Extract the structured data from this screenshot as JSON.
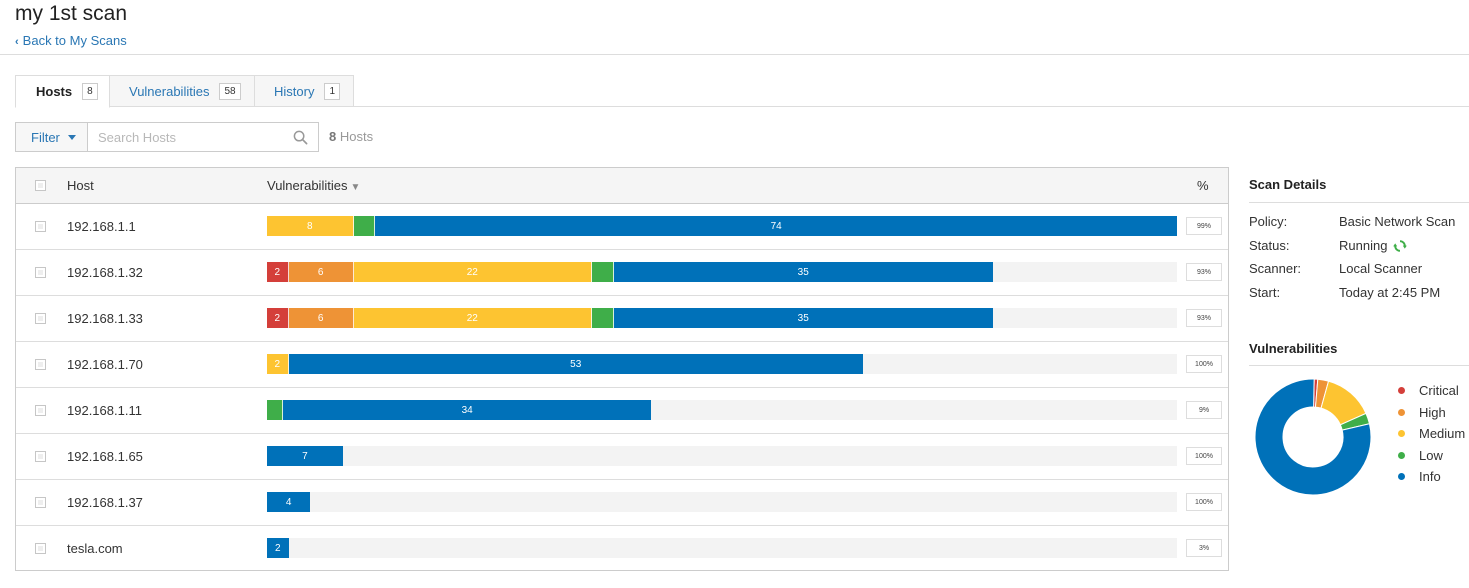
{
  "page": {
    "title": "my 1st scan",
    "back_link": "Back to My Scans"
  },
  "tabs": [
    {
      "label": "Hosts",
      "count": "8",
      "active": true
    },
    {
      "label": "Vulnerabilities",
      "count": "58",
      "active": false
    },
    {
      "label": "History",
      "count": "1",
      "active": false
    }
  ],
  "filter": {
    "button_label": "Filter",
    "search_placeholder": "Search Hosts",
    "count_number": "8",
    "count_label": "Hosts"
  },
  "table": {
    "headers": {
      "host": "Host",
      "vulnerabilities": "Vulnerabilities",
      "percent": "%"
    },
    "rows": [
      {
        "host": "192.168.1.1",
        "percent": "99%",
        "segments": [
          {
            "severity": "medium",
            "count": 8,
            "label": "8"
          },
          {
            "severity": "low",
            "count": 2,
            "label": ""
          },
          {
            "severity": "info",
            "count": 74,
            "label": "74"
          }
        ]
      },
      {
        "host": "192.168.1.32",
        "percent": "93%",
        "segments": [
          {
            "severity": "critical",
            "count": 2,
            "label": "2"
          },
          {
            "severity": "high",
            "count": 6,
            "label": "6"
          },
          {
            "severity": "medium",
            "count": 22,
            "label": "22"
          },
          {
            "severity": "low",
            "count": 2,
            "label": ""
          },
          {
            "severity": "info",
            "count": 35,
            "label": "35"
          }
        ]
      },
      {
        "host": "192.168.1.33",
        "percent": "93%",
        "segments": [
          {
            "severity": "critical",
            "count": 2,
            "label": "2"
          },
          {
            "severity": "high",
            "count": 6,
            "label": "6"
          },
          {
            "severity": "medium",
            "count": 22,
            "label": "22"
          },
          {
            "severity": "low",
            "count": 2,
            "label": ""
          },
          {
            "severity": "info",
            "count": 35,
            "label": "35"
          }
        ]
      },
      {
        "host": "192.168.1.70",
        "percent": "100%",
        "segments": [
          {
            "severity": "medium",
            "count": 2,
            "label": "2"
          },
          {
            "severity": "info",
            "count": 53,
            "label": "53"
          }
        ]
      },
      {
        "host": "192.168.1.11",
        "percent": "9%",
        "segments": [
          {
            "severity": "low",
            "count": 1,
            "label": ""
          },
          {
            "severity": "info",
            "count": 34,
            "label": "34"
          }
        ]
      },
      {
        "host": "192.168.1.65",
        "percent": "100%",
        "segments": [
          {
            "severity": "info",
            "count": 7,
            "label": "7"
          }
        ]
      },
      {
        "host": "192.168.1.37",
        "percent": "100%",
        "segments": [
          {
            "severity": "info",
            "count": 4,
            "label": "4"
          }
        ]
      },
      {
        "host": "tesla.com",
        "percent": "3%",
        "segments": [
          {
            "severity": "info",
            "count": 2,
            "label": "2"
          }
        ]
      }
    ]
  },
  "scan_details": {
    "title": "Scan Details",
    "items": [
      {
        "label": "Policy:",
        "value": "Basic Network Scan"
      },
      {
        "label": "Status:",
        "value": "Running"
      },
      {
        "label": "Scanner:",
        "value": "Local Scanner"
      },
      {
        "label": "Start:",
        "value": "Today at 2:45 PM"
      }
    ]
  },
  "vulnerabilities_panel": {
    "title": "Vulnerabilities",
    "legend": [
      "Critical",
      "High",
      "Medium",
      "Low",
      "Info"
    ]
  },
  "chart_data": {
    "type": "pie",
    "categories": [
      "Critical",
      "High",
      "Medium",
      "Low",
      "Info"
    ],
    "values": [
      1,
      3,
      14,
      3,
      79
    ],
    "unit": "percent (estimated)"
  },
  "colors": {
    "critical": "#d43f3a",
    "high": "#ee9336",
    "medium": "#fdc431",
    "low": "#3fae49",
    "info": "#0071b9",
    "link": "#2a77b4"
  },
  "icons": {
    "back": "chevron-left-icon",
    "filter_caret": "caret-down-icon",
    "search": "search-icon",
    "status": "refresh-spinner-icon"
  }
}
